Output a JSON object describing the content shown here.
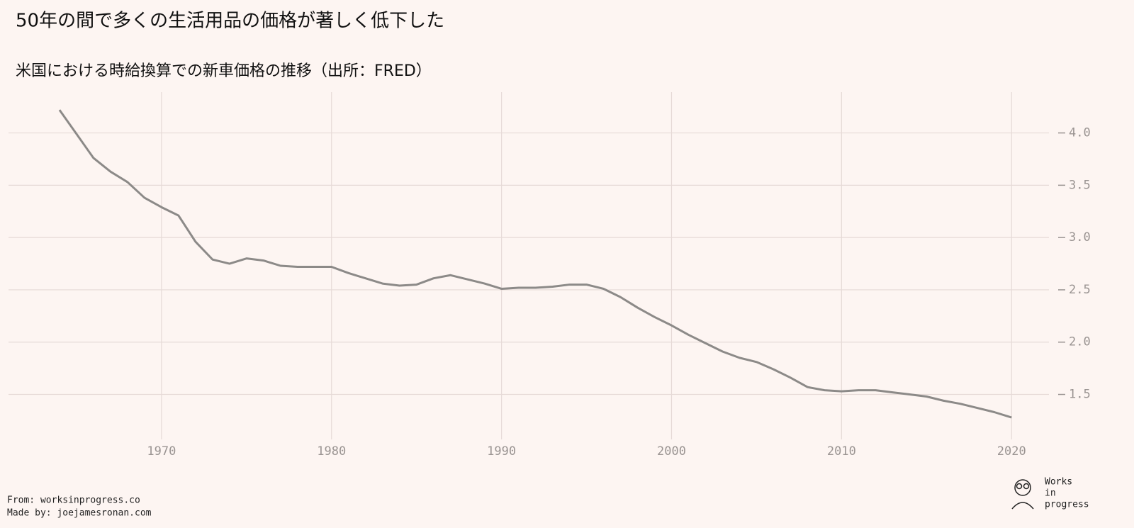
{
  "chart_data": {
    "type": "line",
    "title": "50年の間で多くの生活用品の価格が著しく低下した",
    "subtitle": "米国における時給換算での新車価格の推移（出所：FRED）",
    "x": [
      1964,
      1965,
      1966,
      1967,
      1968,
      1969,
      1970,
      1971,
      1972,
      1973,
      1974,
      1975,
      1976,
      1977,
      1978,
      1979,
      1980,
      1981,
      1982,
      1983,
      1984,
      1985,
      1986,
      1987,
      1988,
      1989,
      1990,
      1991,
      1992,
      1993,
      1994,
      1995,
      1996,
      1997,
      1998,
      1999,
      2000,
      2001,
      2002,
      2003,
      2004,
      2005,
      2006,
      2007,
      2008,
      2009,
      2010,
      2011,
      2012,
      2013,
      2014,
      2015,
      2016,
      2017,
      2018,
      2019,
      2020
    ],
    "series": [
      {
        "color": "#8c8a88",
        "values": [
          4.22,
          3.99,
          3.76,
          3.63,
          3.53,
          3.38,
          3.29,
          3.21,
          2.96,
          2.79,
          2.75,
          2.8,
          2.78,
          2.73,
          2.72,
          2.72,
          2.72,
          2.66,
          2.61,
          2.56,
          2.54,
          2.55,
          2.61,
          2.64,
          2.6,
          2.56,
          2.51,
          2.52,
          2.52,
          2.53,
          2.55,
          2.55,
          2.51,
          2.43,
          2.33,
          2.24,
          2.16,
          2.07,
          1.99,
          1.91,
          1.85,
          1.81,
          1.74,
          1.66,
          1.57,
          1.54,
          1.53,
          1.54,
          1.54,
          1.52,
          1.5,
          1.48,
          1.44,
          1.41,
          1.37,
          1.33,
          1.28
        ]
      }
    ],
    "xlim": [
      1961,
      2022.2
    ],
    "xticks": [
      1970,
      1980,
      1990,
      2000,
      2010,
      2020
    ],
    "ylim": [
      1.07,
      4.39
    ],
    "yticks": [
      {
        "value": 1.5,
        "label": "1.5"
      },
      {
        "value": 2,
        "label": "2.0"
      },
      {
        "value": 2.5,
        "label": "2.5"
      },
      {
        "value": 3,
        "label": "3.0"
      },
      {
        "value": 3.5,
        "label": "3.5"
      },
      {
        "value": 4,
        "label": "4.0"
      }
    ],
    "grid": true
  },
  "footer": {
    "source": "From: worksinprogress.co",
    "author": "Made by: joejamesronan.com"
  },
  "logo": [
    "Works",
    "in",
    "progress"
  ]
}
